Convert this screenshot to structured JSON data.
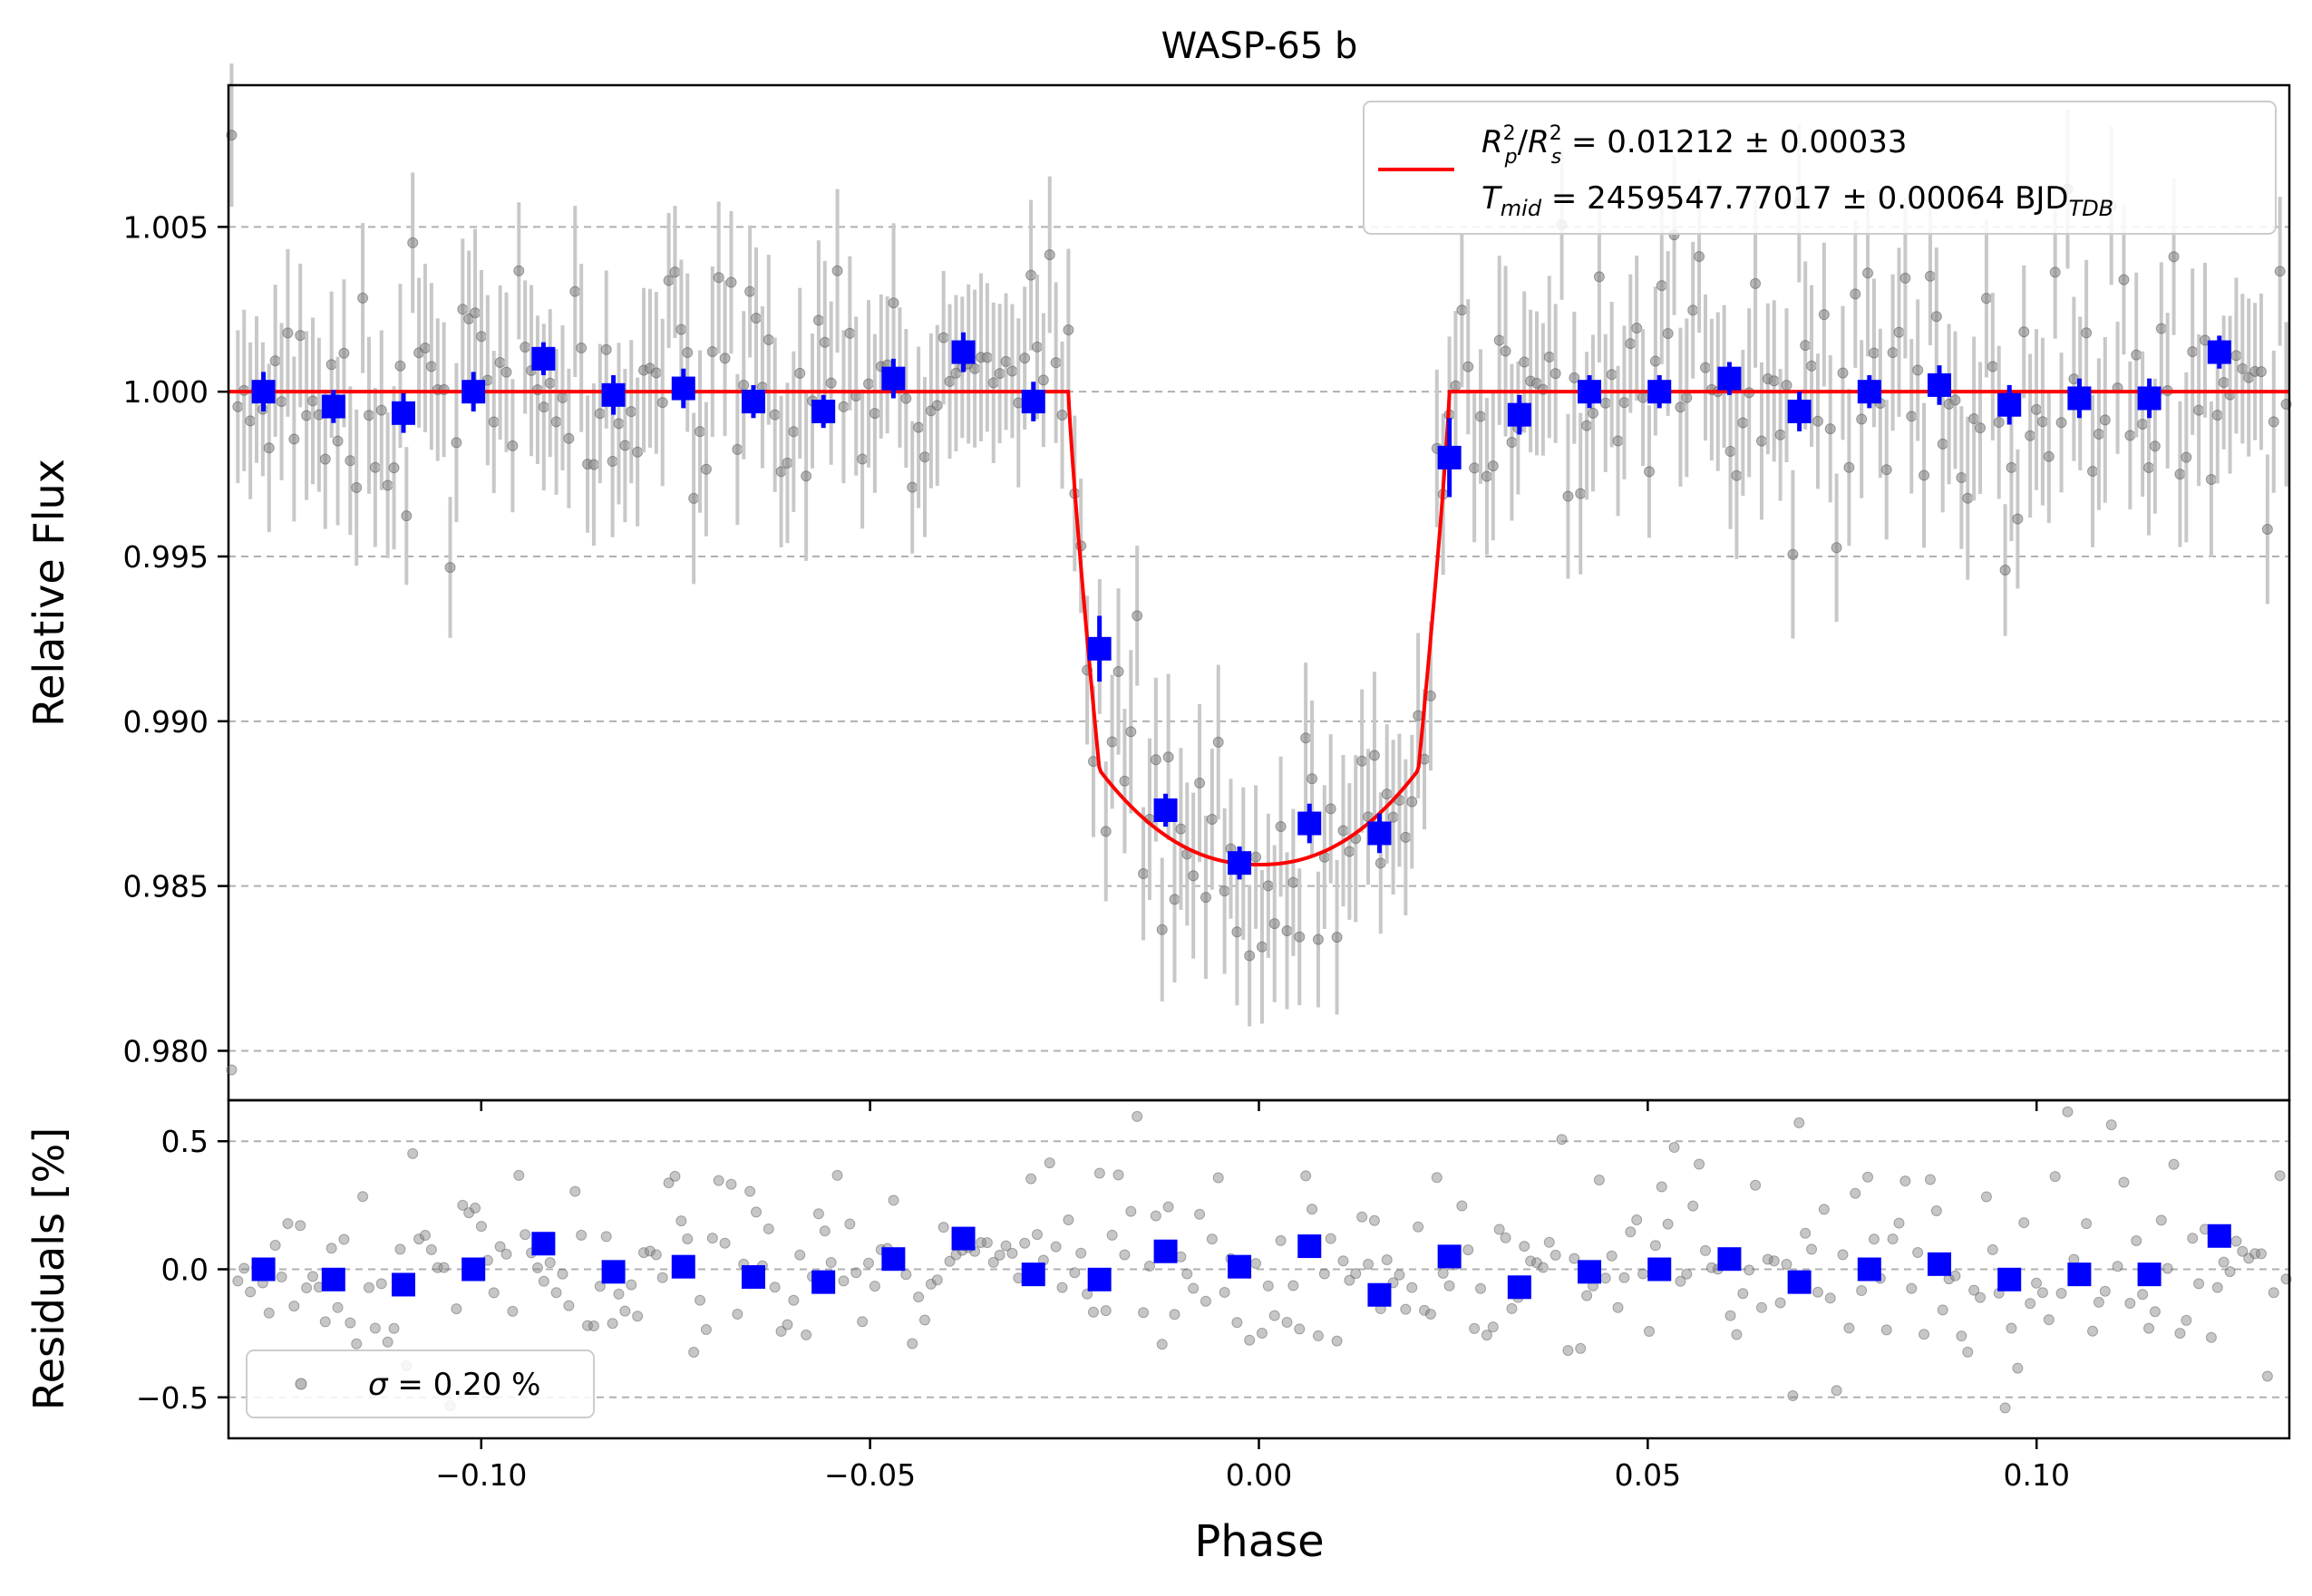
{
  "chart_data": {
    "type": "scatter",
    "title": "WASP-65 b",
    "xlabel": "Phase",
    "xlim": [
      -0.1325,
      0.1325
    ],
    "xticks": [
      -0.1,
      -0.05,
      0.0,
      0.05,
      0.1
    ],
    "xtick_labels": [
      "−0.10",
      "−0.05",
      "0.00",
      "0.05",
      "0.10"
    ],
    "top_panel": {
      "ylabel": "Relative Flux",
      "ylim": [
        0.9785,
        1.0093
      ],
      "yticks": [
        0.98,
        0.985,
        0.99,
        0.995,
        1.0,
        1.005
      ],
      "ytick_labels": [
        "0.980",
        "0.985",
        "0.990",
        "0.995",
        "1.000",
        "1.005"
      ],
      "grid": "horizontal dashed",
      "model": {
        "name": "transit model",
        "color": "#ff0000",
        "depth": 0.01435,
        "ingress_start": -0.0245,
        "ingress_end": -0.0205,
        "egress_start": 0.0205,
        "egress_end": 0.0245,
        "out_of_transit": 1.0
      },
      "binned": {
        "color": "#0000ff",
        "points": [
          [
            -0.128,
            1.0,
            0.0006
          ],
          [
            -0.119,
            0.99955,
            0.0005
          ],
          [
            -0.11,
            0.99935,
            0.0006
          ],
          [
            -0.101,
            1.0,
            0.0006
          ],
          [
            -0.092,
            1.001,
            0.0005
          ],
          [
            -0.083,
            0.9999,
            0.0006
          ],
          [
            -0.074,
            1.0001,
            0.0006
          ],
          [
            -0.065,
            0.9997,
            0.0005
          ],
          [
            -0.056,
            0.9994,
            0.0005
          ],
          [
            -0.047,
            1.0004,
            0.0006
          ],
          [
            -0.038,
            1.0012,
            0.0006
          ],
          [
            -0.029,
            0.9997,
            0.0006
          ],
          [
            -0.0205,
            0.9922,
            0.001
          ],
          [
            -0.012,
            0.9873,
            0.0005
          ],
          [
            -0.0025,
            0.9857,
            0.0005
          ],
          [
            0.0065,
            0.9869,
            0.0006
          ],
          [
            0.0155,
            0.9866,
            0.0006
          ],
          [
            0.0245,
            0.998,
            0.0012
          ],
          [
            0.0335,
            0.9993,
            0.0006
          ],
          [
            0.0425,
            1.0,
            0.0005
          ],
          [
            0.0515,
            1.0,
            0.0005
          ],
          [
            0.0605,
            1.0004,
            0.0005
          ],
          [
            0.0695,
            0.9994,
            0.0006
          ],
          [
            0.0785,
            1.0,
            0.0005
          ],
          [
            0.0875,
            1.0002,
            0.0006
          ],
          [
            0.0965,
            0.9996,
            0.0006
          ],
          [
            0.1055,
            0.9998,
            0.0006
          ],
          [
            0.1145,
            0.9998,
            0.0006
          ],
          [
            0.1235,
            1.0012,
            0.0005
          ]
        ]
      },
      "legend": {
        "location": "upper right",
        "line1_prefix": "R",
        "line1_sub_p": "p",
        "line1_sub_s": "s",
        "line1_sup": "2",
        "line1_value": " = 0.01212 ± 0.00033",
        "line2_T": "T",
        "line2_sub": "mid",
        "line2_value": " = 2459547.77017 ± 0.00064 BJD",
        "line2_sub2": "TDB"
      }
    },
    "bottom_panel": {
      "ylabel": "Residuals [%]",
      "ylim": [
        -0.66,
        0.66
      ],
      "yticks": [
        -0.5,
        0.0,
        0.5
      ],
      "ytick_labels": [
        "−0.5",
        "0.0",
        "0.5"
      ],
      "grid": "horizontal dashed",
      "binned_residuals": [
        [
          -0.128,
          0.0
        ],
        [
          -0.119,
          -0.04
        ],
        [
          -0.11,
          -0.06
        ],
        [
          -0.101,
          0.0
        ],
        [
          -0.092,
          0.1
        ],
        [
          -0.083,
          -0.01
        ],
        [
          -0.074,
          0.01
        ],
        [
          -0.065,
          -0.03
        ],
        [
          -0.056,
          -0.05
        ],
        [
          -0.047,
          0.04
        ],
        [
          -0.038,
          0.12
        ],
        [
          -0.029,
          -0.02
        ],
        [
          -0.0205,
          -0.04
        ],
        [
          -0.012,
          0.07
        ],
        [
          -0.0025,
          0.01
        ],
        [
          0.0065,
          0.09
        ],
        [
          0.0155,
          -0.1
        ],
        [
          0.0245,
          0.05
        ],
        [
          0.0335,
          -0.07
        ],
        [
          0.0425,
          -0.01
        ],
        [
          0.0515,
          0.0
        ],
        [
          0.0605,
          0.04
        ],
        [
          0.0695,
          -0.05
        ],
        [
          0.0785,
          0.0
        ],
        [
          0.0875,
          0.02
        ],
        [
          0.0965,
          -0.04
        ],
        [
          0.1055,
          -0.02
        ],
        [
          0.1145,
          -0.02
        ],
        [
          0.1235,
          0.13
        ]
      ],
      "legend": {
        "location": "lower left",
        "sigma_symbol": "σ",
        "sigma_text": " = 0.20 %"
      }
    },
    "raw_data": {
      "color": "#808080",
      "n_points": 330,
      "scatter_pct": 0.2
    }
  }
}
